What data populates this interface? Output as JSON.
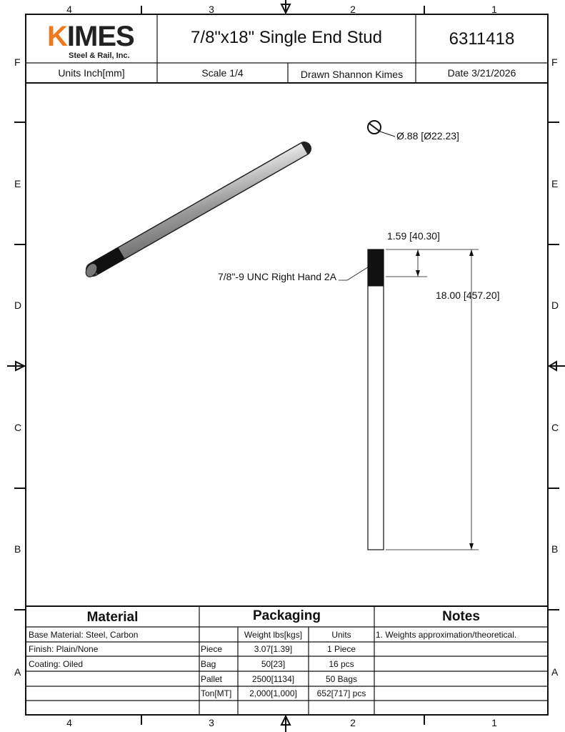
{
  "title_block": {
    "logo": {
      "brand": "KIMES",
      "sub": "Steel & Rail, Inc.",
      "accent": "#ee7a1b"
    },
    "title": "7/8\"x18\" Single End Stud",
    "part_number": "6311418",
    "units": "Units Inch[mm]",
    "scale": "Scale 1/4",
    "drawn": "Drawn Shannon Kimes",
    "date": "Date 3/21/2026"
  },
  "zones": {
    "columns": [
      "4",
      "3",
      "2",
      "1"
    ],
    "rows": [
      "F",
      "E",
      "D",
      "C",
      "B",
      "A"
    ]
  },
  "annotations": {
    "diameter": "Ø.88 [Ø22.23]",
    "thread_length": "1.59 [40.30]",
    "thread_spec": "7/8\"-9 UNC Right Hand 2A",
    "overall_length": "18.00 [457.20]"
  },
  "table": {
    "material_header": "Material",
    "packaging_header": "Packaging",
    "notes_header": "Notes",
    "material": [
      "Base Material: Steel, Carbon",
      "Finish: Plain/None",
      "Coating: Oiled",
      "",
      "",
      ""
    ],
    "packaging_columns": [
      "",
      "Weight lbs[kgs]",
      "Units"
    ],
    "packaging_rows": [
      [
        "Piece",
        "3.07[1.39]",
        "1 Piece"
      ],
      [
        "Bag",
        "50[23]",
        "16 pcs"
      ],
      [
        "Pallet",
        "2500[1134]",
        "50 Bags"
      ],
      [
        "Ton[MT]",
        "2,000[1,000]",
        "652[717] pcs"
      ]
    ],
    "notes": [
      "1. Weights approximation/theoretical."
    ]
  }
}
